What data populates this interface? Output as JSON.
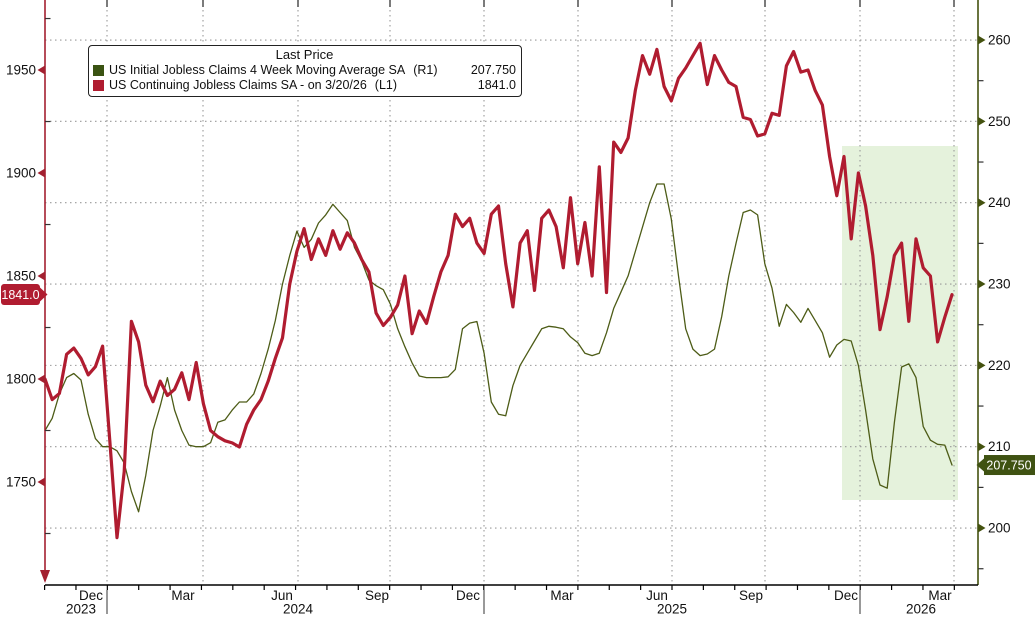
{
  "legend": {
    "title": "Last Price",
    "entries": [
      {
        "label": "US Initial Jobless Claims 4 Week Moving Average SA",
        "ref": "(R1)",
        "value": "207.750",
        "swatch_color": "#3a5312"
      },
      {
        "label": "US Continuing Jobless Claims SA -  on 3/20/26",
        "ref": "(L1)",
        "value": "1841.0",
        "swatch_color": "#b01c30"
      }
    ]
  },
  "chart_data": {
    "type": "line",
    "title": "Last Price",
    "x_axis": {
      "month_labels": [
        "Dec",
        "Mar",
        "Jun",
        "Sep",
        "Dec",
        "Mar",
        "Jun",
        "Sep",
        "Dec",
        "Mar"
      ],
      "year_labels": [
        "2023",
        "2024",
        "2025",
        "2026"
      ]
    },
    "left_axis": {
      "ticks": [
        1950,
        1900,
        1850,
        1800,
        1750
      ],
      "minor_step": 25,
      "min": 1700,
      "max": 1984,
      "color": "#a32030",
      "last_value_badge": "1841.0"
    },
    "right_axis": {
      "ticks": [
        260,
        250,
        240,
        230,
        220,
        210,
        200
      ],
      "minor_step": 5,
      "min": 193.0,
      "max": 264.92,
      "color": "#44520f",
      "last_value_badge": "207.750"
    },
    "highlight_region": {
      "color": "#e0f0d6",
      "opacity": 0.85
    },
    "series": [
      {
        "name": "US Initial Jobless Claims 4 Week Moving Average SA",
        "axis": "right",
        "color": "#4d5c17",
        "stroke_width": 1.3,
        "last": 207.75,
        "values": [
          212,
          213.5,
          216.5,
          218.5,
          219,
          218.2,
          214,
          211,
          210,
          210,
          209.5,
          208,
          204.5,
          202,
          206.5,
          212,
          215,
          218.5,
          214.5,
          212,
          210.2,
          210,
          210,
          210.5,
          213,
          213.3,
          214.5,
          215.5,
          215.5,
          216.5,
          219,
          222,
          225.5,
          230,
          233.5,
          236.5,
          234.5,
          235.5,
          237.5,
          238.5,
          239.8,
          238.8,
          237.8,
          234.5,
          232.8,
          230.5,
          229.8,
          229.3,
          227.5,
          224.5,
          222.3,
          220.3,
          218.7,
          218.5,
          218.5,
          218.5,
          218.6,
          219.5,
          224.5,
          225.2,
          225.4,
          221.5,
          215.5,
          214,
          213.8,
          217.5,
          220,
          221.5,
          223,
          224.5,
          224.8,
          224.7,
          224.5,
          223.5,
          222.8,
          221.5,
          221.2,
          221.5,
          224,
          227,
          229,
          231,
          234,
          237,
          240,
          242.3,
          242.3,
          238,
          231,
          224.5,
          222,
          221.2,
          221.4,
          222,
          226,
          231,
          235,
          238.8,
          239.1,
          238.5,
          232.5,
          229.5,
          224.8,
          227.5,
          226.5,
          225.3,
          227,
          225.5,
          224,
          221,
          222.5,
          223.2,
          223,
          220,
          214.5,
          208.5,
          205.3,
          204.9,
          213,
          219.8,
          220.2,
          218.5,
          212.5,
          210.8,
          210.3,
          210.2,
          207.75
        ]
      },
      {
        "name": "US Continuing Jobless Claims SA",
        "axis": "left",
        "color": "#b01c30",
        "stroke_width": 3.2,
        "last": 1841.0,
        "values": [
          1800,
          1790,
          1793,
          1812,
          1815,
          1810,
          1802,
          1806,
          1816,
          1770,
          1723,
          1755,
          1828,
          1818,
          1797,
          1789,
          1799,
          1792,
          1795,
          1803,
          1790,
          1808,
          1788,
          1775,
          1772,
          1770,
          1769,
          1767,
          1778,
          1785,
          1790,
          1799,
          1810,
          1820,
          1846,
          1862,
          1873,
          1858,
          1868,
          1860,
          1872,
          1863,
          1871,
          1866,
          1858,
          1852,
          1832,
          1826,
          1830,
          1836,
          1850,
          1822,
          1833,
          1827,
          1840,
          1852,
          1860,
          1880,
          1874,
          1878,
          1866,
          1861,
          1880,
          1884,
          1856,
          1835,
          1866,
          1872,
          1843,
          1878,
          1882,
          1874,
          1854,
          1888,
          1856,
          1876,
          1850,
          1903,
          1842,
          1915,
          1910,
          1917,
          1940,
          1957,
          1948,
          1960,
          1942,
          1935,
          1946,
          1951,
          1957,
          1963,
          1943,
          1957,
          1950,
          1944,
          1942,
          1927,
          1926,
          1918,
          1919,
          1929,
          1928,
          1952,
          1959,
          1949,
          1950,
          1940,
          1933,
          1908,
          1889,
          1908,
          1868,
          1900,
          1884,
          1860,
          1824,
          1840,
          1860,
          1866,
          1828,
          1868,
          1854,
          1850,
          1818,
          1830,
          1841
        ]
      }
    ]
  },
  "colors": {
    "grid": "#999999",
    "text": "#111111",
    "bottom_axis": "#000000",
    "background": "#ffffff"
  }
}
